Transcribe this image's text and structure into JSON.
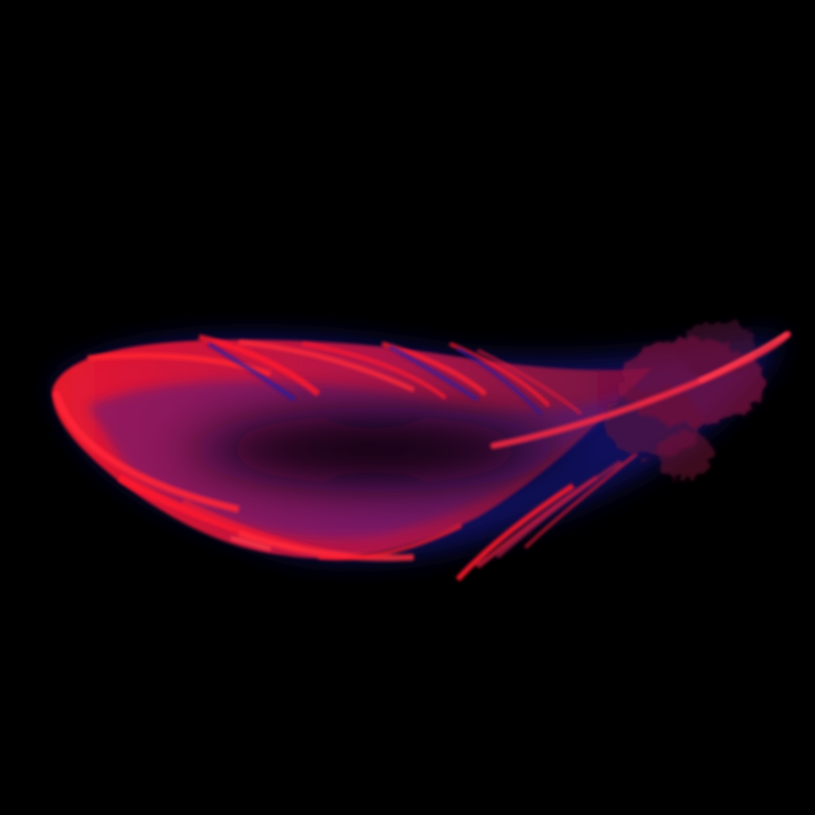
{
  "image": {
    "subject": "feather",
    "background_color": "#000000"
  },
  "palette": {
    "vane_red": "#ff1a2e",
    "vane_magenta": "#c01848",
    "edge_glow_blue": "#1a1aa8",
    "core_dark": "#050308",
    "shadow_navy": "#12104a"
  }
}
